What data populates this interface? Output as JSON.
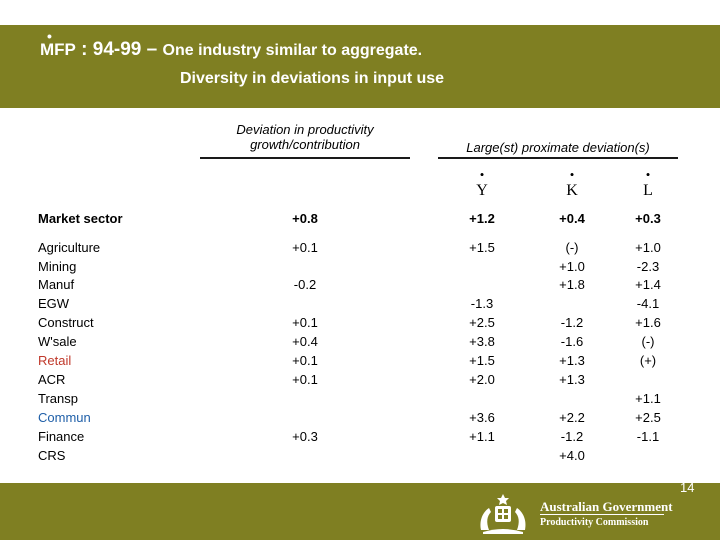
{
  "header": {
    "title_mfp": "MFP",
    "title_lead": ": 94-99 –",
    "title_rest": "One industry similar to aggregate.",
    "subtitle": "Diversity in deviations in input use"
  },
  "table": {
    "col1_header_line1": "Deviation in productivity",
    "col1_header_line2": "growth/contribution",
    "col2_header": "Large(st) proximate deviation(s)",
    "letters": [
      "Y",
      "K",
      "L"
    ],
    "market_sector": {
      "label": "Market sector",
      "values": [
        "+0.8",
        "+1.2",
        "+0.4",
        "+0.3"
      ]
    },
    "rows": [
      {
        "label": "Agriculture",
        "color": "#000000",
        "dev": "+0.1",
        "y": "+1.5",
        "k": "(-)",
        "l": "+1.0"
      },
      {
        "label": "Mining",
        "color": "#000000",
        "dev": "",
        "y": "",
        "k": "+1.0",
        "l": "-2.3"
      },
      {
        "label": "Manuf",
        "color": "#000000",
        "dev": "-0.2",
        "y": "",
        "k": "+1.8",
        "l": "+1.4"
      },
      {
        "label": "EGW",
        "color": "#000000",
        "dev": "",
        "y": "-1.3",
        "k": "",
        "l": "-4.1"
      },
      {
        "label": "Construct",
        "color": "#000000",
        "dev": "+0.1",
        "y": "+2.5",
        "k": "-1.2",
        "l": "+1.6"
      },
      {
        "label": "W'sale",
        "color": "#000000",
        "dev": "+0.4",
        "y": "+3.8",
        "k": "-1.6",
        "l": "(-)"
      },
      {
        "label": "Retail",
        "color": "#c0392b",
        "dev": "+0.1",
        "y": "+1.5",
        "k": "+1.3",
        "l": "(+)"
      },
      {
        "label": "ACR",
        "color": "#000000",
        "dev": "+0.1",
        "y": "+2.0",
        "k": "+1.3",
        "l": ""
      },
      {
        "label": "Transp",
        "color": "#000000",
        "dev": "",
        "y": "",
        "k": "",
        "l": "+1.1"
      },
      {
        "label": "Commun",
        "color": "#1f5fa8",
        "dev": "",
        "y": "+3.6",
        "k": "+2.2",
        "l": "+2.5"
      },
      {
        "label": "Finance",
        "color": "#000000",
        "dev": "+0.3",
        "y": "+1.1",
        "k": "-1.2",
        "l": "-1.1"
      },
      {
        "label": "CRS",
        "color": "#000000",
        "dev": "",
        "y": "",
        "k": "+4.0",
        "l": ""
      }
    ]
  },
  "footer": {
    "org_line1": "Australian Government",
    "org_line2": "Productivity Commission",
    "page_number": "14",
    "crest_icon": "coat-of-arms-icon"
  }
}
